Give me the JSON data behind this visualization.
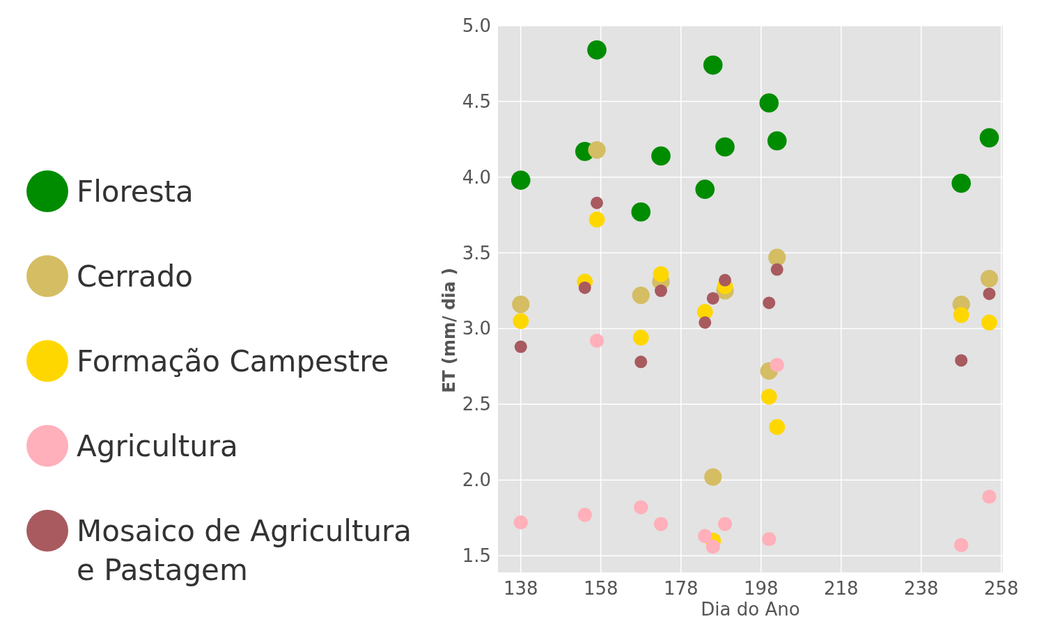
{
  "chart_data": {
    "type": "scatter",
    "xlabel": "Dia do Ano",
    "ylabel": "ET (mm/ dia )",
    "xlim": [
      132.3,
      258.4
    ],
    "ylim": [
      1.39,
      5.0
    ],
    "xticks": [
      138,
      158,
      178,
      198,
      218,
      238,
      258
    ],
    "yticks": [
      {
        "value": 1.5,
        "label": "1.5"
      },
      {
        "value": 2,
        "label": "2.0"
      },
      {
        "value": 2.5,
        "label": "2.5"
      },
      {
        "value": 3,
        "label": "3.0"
      },
      {
        "value": 3.5,
        "label": "3.5"
      },
      {
        "value": 4,
        "label": "4.0"
      },
      {
        "value": 4.5,
        "label": "4.5"
      },
      {
        "value": 5,
        "label": "5.0"
      }
    ],
    "grid": true,
    "legend": "left",
    "marker": "circle",
    "series": [
      {
        "name": "Floresta",
        "color": "#008c00",
        "x": [
          138,
          154,
          157,
          168,
          173,
          184,
          186,
          189,
          200,
          202,
          248,
          255
        ],
        "values": [
          3.98,
          4.17,
          4.84,
          3.77,
          4.14,
          3.92,
          4.74,
          4.2,
          4.49,
          4.24,
          3.96,
          4.26
        ]
      },
      {
        "name": "Cerrado",
        "color": "#d4bd63",
        "x": [
          138,
          157,
          168,
          173,
          186,
          189,
          200,
          202,
          248,
          255
        ],
        "values": [
          3.16,
          4.18,
          3.22,
          3.31,
          2.02,
          3.25,
          2.72,
          3.47,
          3.16,
          3.33
        ]
      },
      {
        "name": "Formação Campestre",
        "color": "#ffd700",
        "x": [
          138,
          154,
          157,
          168,
          173,
          184,
          186,
          189,
          200,
          202,
          248,
          255
        ],
        "values": [
          3.05,
          3.31,
          3.72,
          2.94,
          3.36,
          3.11,
          1.6,
          3.28,
          2.55,
          2.35,
          3.09,
          3.04
        ]
      },
      {
        "name": "Agricultura",
        "color": "#ffb0ba",
        "x": [
          138,
          154,
          157,
          168,
          173,
          184,
          186,
          189,
          200,
          202,
          248,
          255
        ],
        "values": [
          1.72,
          1.77,
          2.92,
          1.82,
          1.71,
          1.63,
          1.56,
          1.71,
          1.61,
          2.76,
          1.57,
          1.89
        ]
      },
      {
        "name": "Mosaico de Agricultura e Pastagem",
        "color": "#a85a5f",
        "x": [
          138,
          154,
          157,
          168,
          173,
          184,
          186,
          189,
          200,
          202,
          248,
          255
        ],
        "values": [
          2.88,
          3.27,
          3.83,
          2.78,
          3.25,
          3.04,
          3.2,
          3.32,
          3.17,
          3.39,
          2.79,
          3.23
        ]
      }
    ]
  }
}
